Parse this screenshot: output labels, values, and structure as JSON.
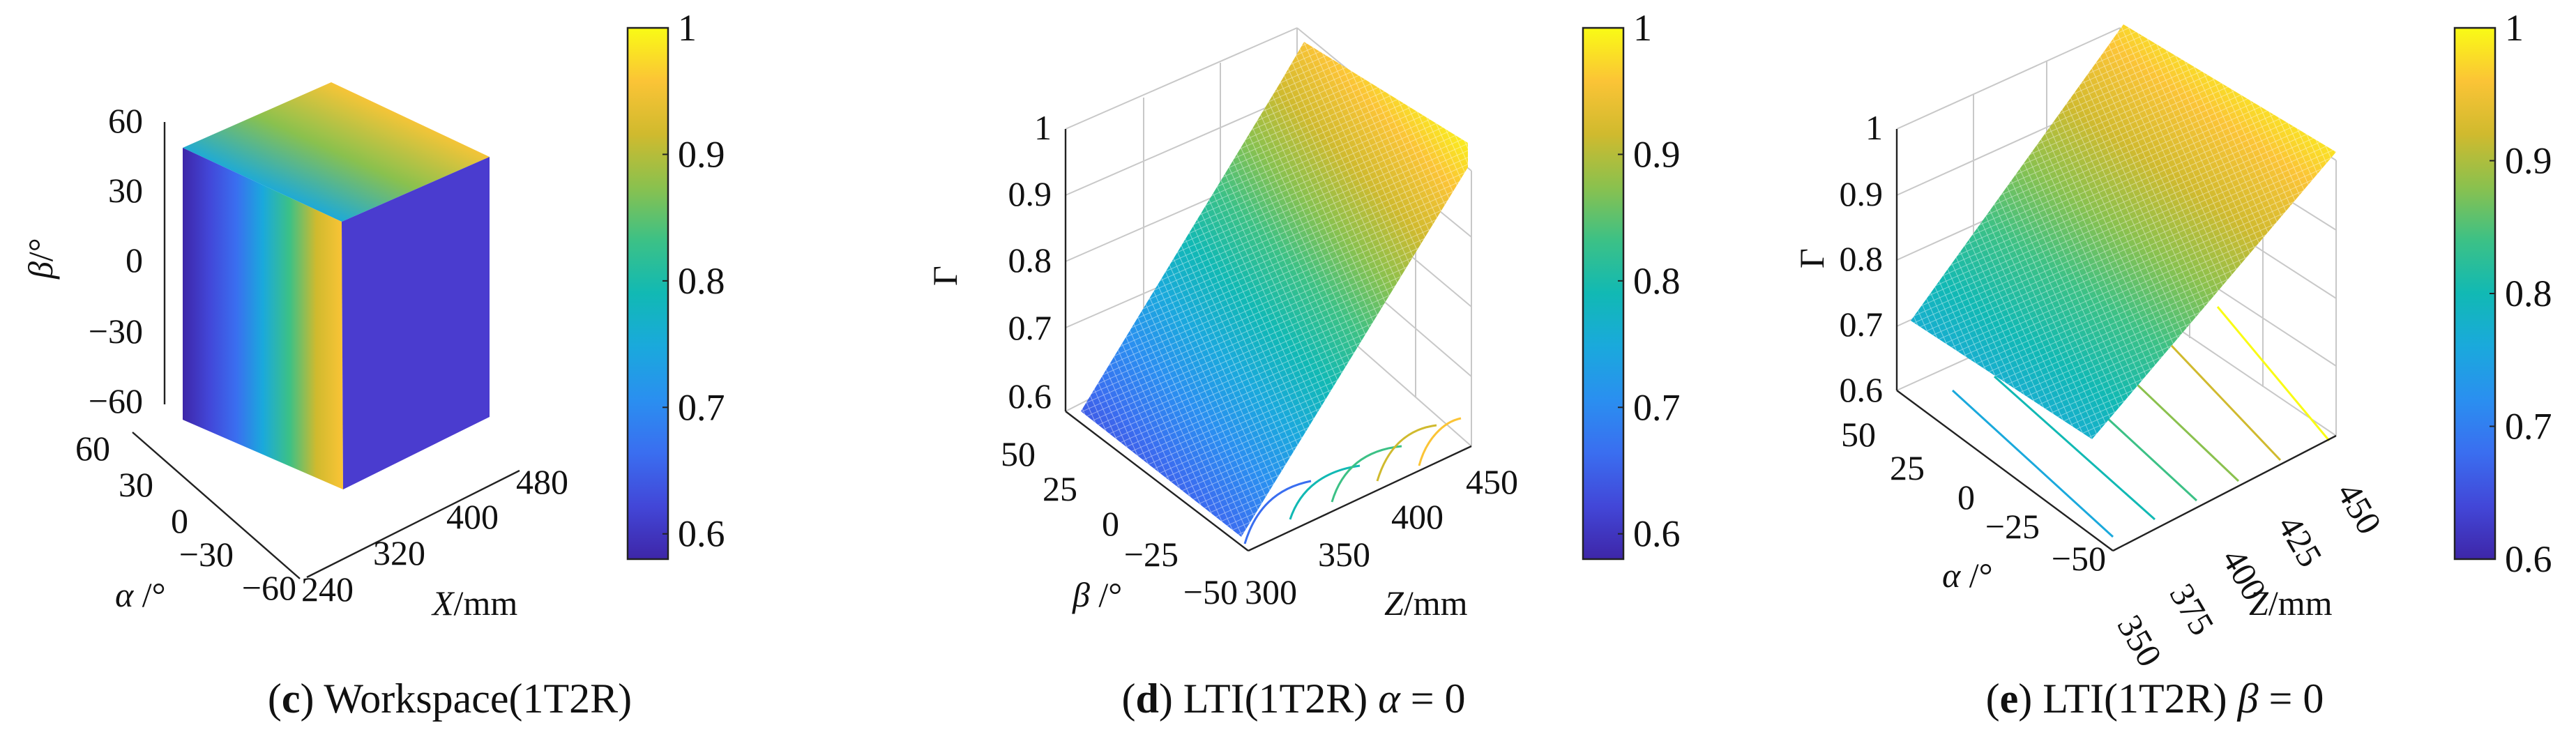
{
  "colors": {
    "colormap": [
      "#3e26a8",
      "#4247d8",
      "#3a6ef0",
      "#2a8ff0",
      "#1aa9dc",
      "#11b9b4",
      "#3cc186",
      "#8ac14e",
      "#d0ba2e",
      "#fbc436",
      "#f9fb15"
    ]
  },
  "chart_data": [
    {
      "id": "c",
      "type": "surface3d",
      "title": "Workspace(1T2R)",
      "caption": {
        "letter": "c",
        "open": "(",
        "close": ")",
        "text": " Workspace(1T2R)"
      },
      "axes": {
        "x": {
          "name": "X",
          "unit": "/mm",
          "ticks": [
            "240",
            "320",
            "400",
            "480"
          ]
        },
        "alpha": {
          "name": "α",
          "unit": " /°",
          "ticks": [
            "60",
            "30",
            "0",
            "−30",
            "−60"
          ]
        },
        "beta": {
          "name": "β",
          "unit": "/°",
          "ticks": [
            "60",
            "30",
            "0",
            "−30",
            "−60"
          ]
        }
      },
      "colorbar": {
        "min": 0.58,
        "max": 1.0,
        "ticks": [
          "0.6",
          "0.7",
          "0.8",
          "0.9",
          "1"
        ]
      }
    },
    {
      "id": "d",
      "type": "surface3d",
      "title": "LTI(1T2R) α = 0",
      "caption": {
        "letter": "d",
        "open": "(",
        "close": ")",
        "text": " LTI(1T2R) ",
        "var": "α",
        "eq": " = 0"
      },
      "axes": {
        "z": {
          "name": "Z",
          "unit": "/mm",
          "ticks": [
            "300",
            "350",
            "400",
            "450"
          ]
        },
        "beta": {
          "name": "β",
          "unit": " /°",
          "ticks": [
            "50",
            "25",
            "0",
            "−25",
            "−50"
          ]
        },
        "gamma": {
          "name": "Γ",
          "ticks": [
            "0.6",
            "0.7",
            "0.8",
            "0.9",
            "1"
          ],
          "range": [
            0.57,
            1.0
          ]
        }
      },
      "colorbar": {
        "min": 0.58,
        "max": 1.0,
        "ticks": [
          "0.6",
          "0.7",
          "0.8",
          "0.9",
          "1"
        ]
      }
    },
    {
      "id": "e",
      "type": "surface3d",
      "title": "LTI(1T2R) β = 0",
      "caption": {
        "letter": "e",
        "open": "(",
        "close": ")",
        "text": " LTI(1T2R) ",
        "var": "β",
        "eq": " = 0"
      },
      "axes": {
        "z": {
          "name": "Z",
          "unit": "/mm",
          "ticks": [
            "350",
            "375",
            "400",
            "425",
            "450"
          ]
        },
        "alpha": {
          "name": "α",
          "unit": " /°",
          "ticks": [
            "50",
            "25",
            "0",
            "−25",
            "−50"
          ]
        },
        "gamma": {
          "name": "Γ",
          "ticks": [
            "0.6",
            "0.7",
            "0.8",
            "0.9",
            "1"
          ],
          "range": [
            0.6,
            1.0
          ]
        }
      },
      "colorbar": {
        "min": 0.6,
        "max": 1.0,
        "ticks": [
          "0.6",
          "0.7",
          "0.8",
          "0.9",
          "1"
        ]
      }
    }
  ]
}
